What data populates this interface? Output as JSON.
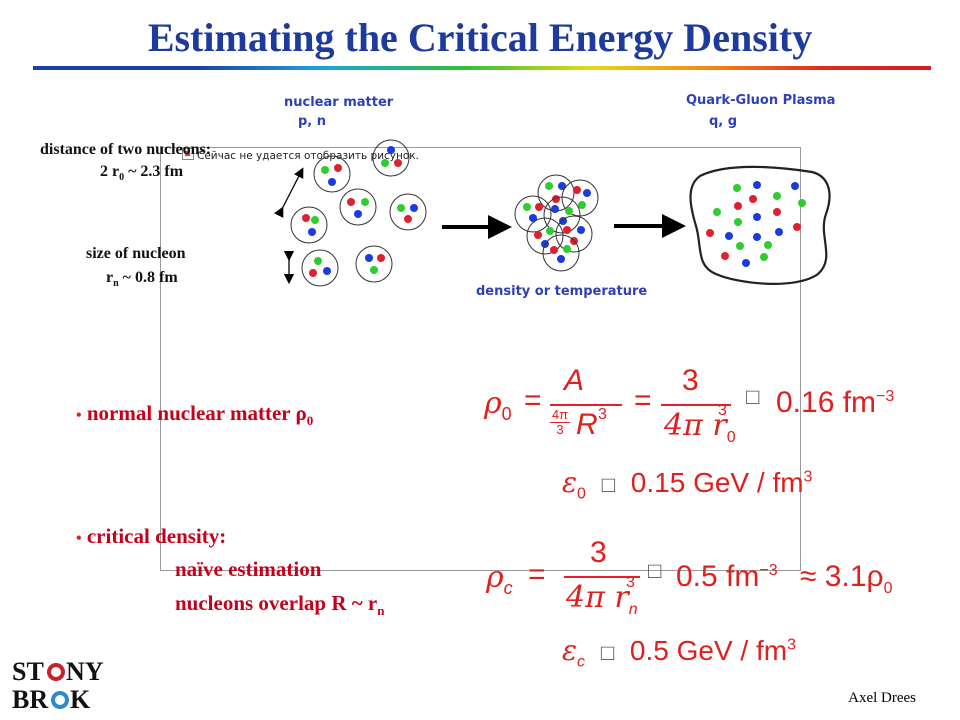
{
  "title": "Estimating the Critical Energy Density",
  "colors": {
    "title": "#1d3a9c",
    "red_text": "#c6001b",
    "label_blue": "#2f3fb8"
  },
  "diagram": {
    "nuclear_matter_label": "nuclear matter",
    "nuclear_matter_sub": "p, n",
    "qgp_label": "Quark-Gluon Plasma",
    "qgp_sub": "q, g",
    "axis_label": "density or temperature",
    "broken_image_text": "Сейчас не удается отобразить рисунок.",
    "distance_label": "distance of two nucleons:",
    "distance_value_prefix": "2 r",
    "distance_value_sub": "0",
    "distance_value_suffix": " ~ 2.3 fm",
    "size_label": "size of nucleon",
    "size_value_prefix": "r",
    "size_value_sub": "n",
    "size_value_suffix": " ~ 0.8 fm"
  },
  "bullets": {
    "normal_matter": "normal nuclear matter ρ",
    "normal_matter_sub": "0",
    "critical_density": "critical density:",
    "naive_estimation": "naïve estimation",
    "overlap_prefix": "nucleons overlap R ~ r",
    "overlap_sub": "n"
  },
  "equations": {
    "rho0_lhs": "ρ",
    "rho0_lhs_sub": "0",
    "rho0_A": "A",
    "rho0_small_num": "4π",
    "rho0_small_den": "3",
    "rho0_R": "R",
    "rho0_exp3": "3",
    "rho0_num3": "3",
    "rho0_den": "4π r",
    "rho0_den_sub": "0",
    "rho0_result": "0.16 fm",
    "rho0_result_exp": "−3",
    "eps0_lhs": "ε",
    "eps0_sub": "0",
    "eps0_result": "0.15 GeV / fm",
    "eps0_exp": "3",
    "rhoc_lhs": "ρ",
    "rhoc_sub": "c",
    "rhoc_num": "3",
    "rhoc_den": "4π r",
    "rhoc_den_sub": "n",
    "rhoc_result": "0.5 fm",
    "rhoc_result_exp": "−3",
    "rhoc_approx": "≈ 3.1ρ",
    "rhoc_approx_sub": "0",
    "epsc_lhs": "ε",
    "epsc_sub": "c",
    "epsc_result": "0.5 GeV / fm",
    "epsc_exp": "3",
    "missing_glyph": "□"
  },
  "logo": {
    "line1": "ST NY",
    "line2": "BR  K"
  },
  "footer": {
    "author": "Axel Drees"
  }
}
